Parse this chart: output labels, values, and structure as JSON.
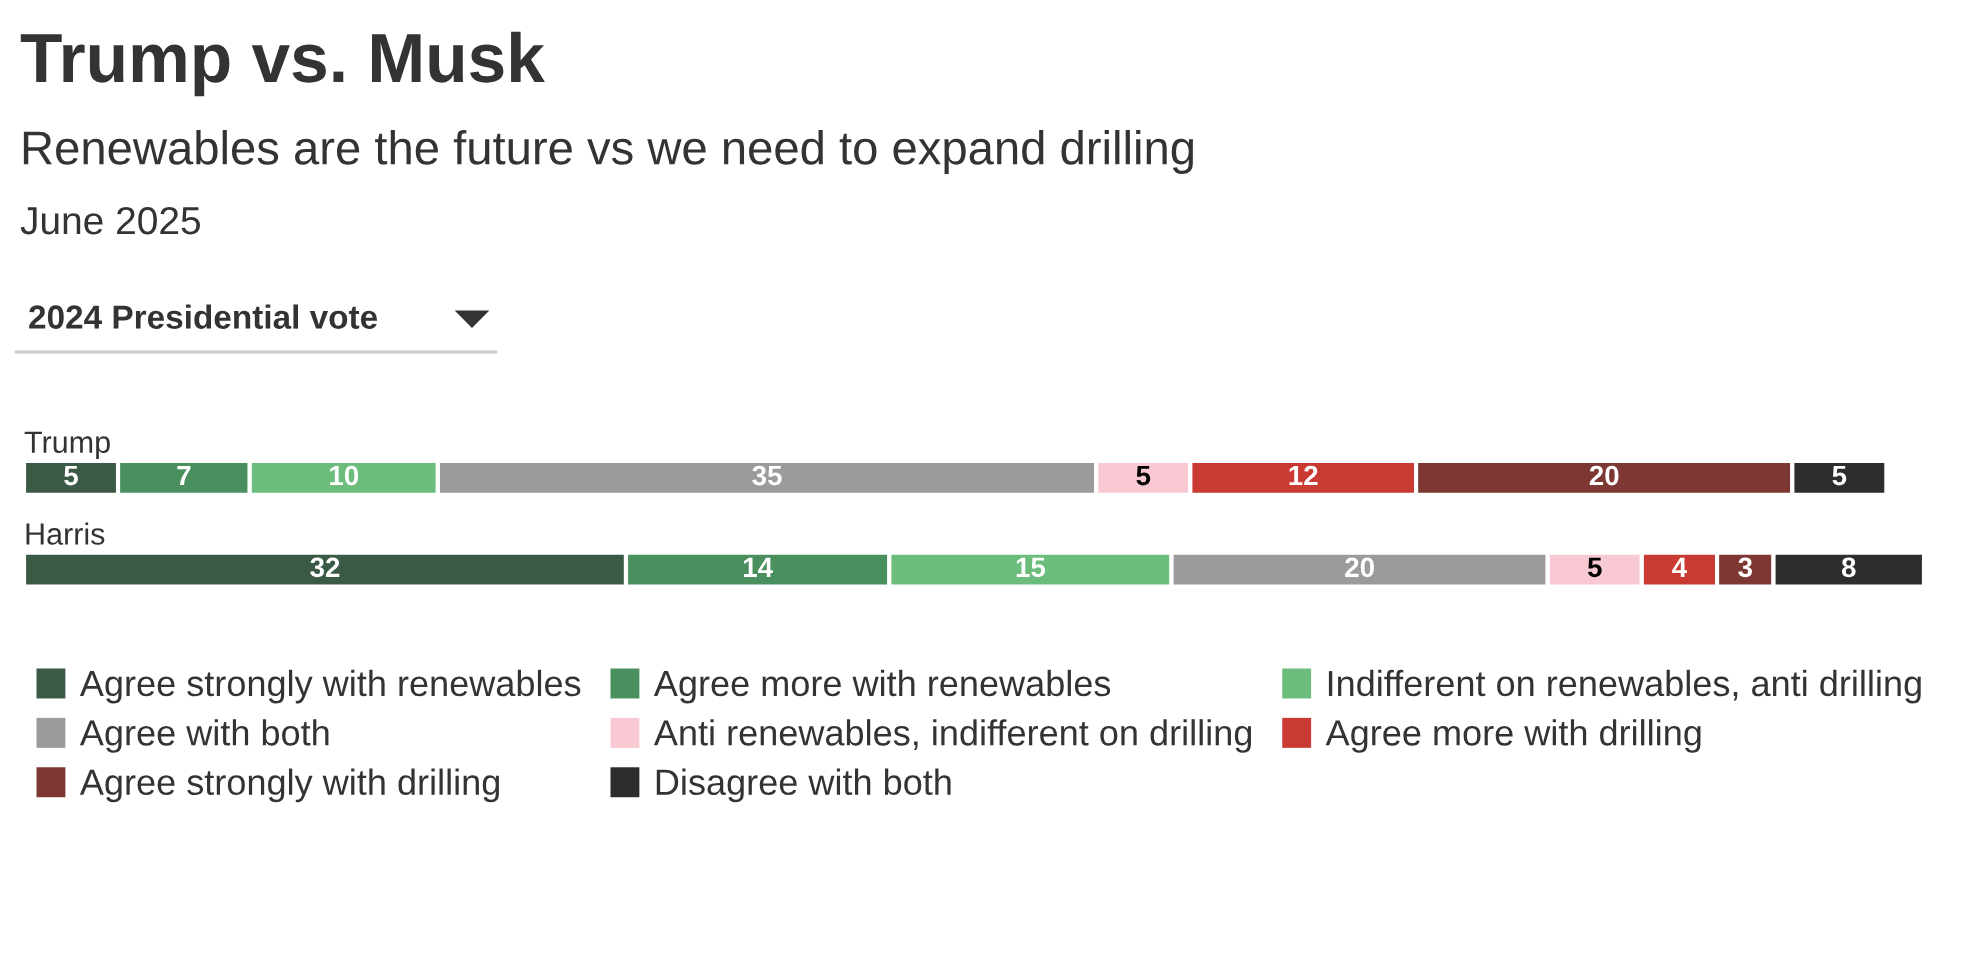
{
  "chart_data": {
    "type": "bar",
    "orientation": "horizontal",
    "stacked": true,
    "data_labels": true,
    "legend": "bottom left",
    "title": "Trump vs. Musk",
    "subtitle": "Renewables are the future vs we need to expand drilling\nJune 2025",
    "annotations": [
      "2024 Presidential vote"
    ],
    "categories": [
      "Trump",
      "Harris"
    ],
    "series": [
      {
        "name": "Agree strongly with renewables",
        "color": "#3b5a45",
        "values": [
          5,
          32
        ]
      },
      {
        "name": "Agree more with renewables",
        "color": "#4a8f5e",
        "values": [
          7,
          14
        ]
      },
      {
        "name": "Indifferent on renewables, anti drilling",
        "color": "#6cbd7c",
        "values": [
          10,
          15
        ]
      },
      {
        "name": "Agree with both",
        "color": "#9b9b9b",
        "values": [
          35,
          20
        ]
      },
      {
        "name": "Anti renewables, indifferent on drilling",
        "color": "#f8c9d2",
        "values": [
          5,
          5
        ]
      },
      {
        "name": "Agree more with drilling",
        "color": "#c93a33",
        "values": [
          12,
          4
        ]
      },
      {
        "name": "Agree strongly with drilling",
        "color": "#7e3833",
        "values": [
          20,
          3
        ]
      },
      {
        "name": "Disagree with both",
        "color": "#2d2d2d",
        "values": [
          5,
          8
        ]
      }
    ]
  }
}
